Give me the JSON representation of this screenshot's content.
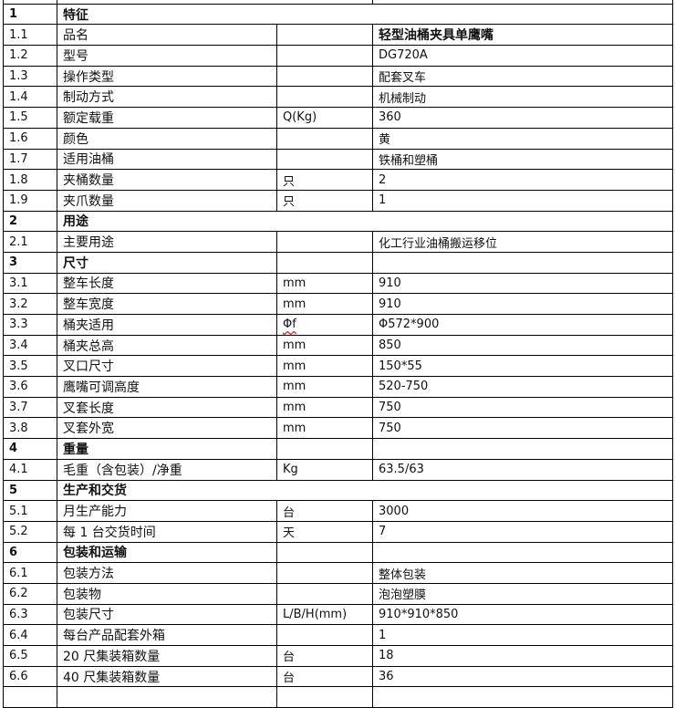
{
  "rows": [
    {
      "num": "1",
      "name": "特征",
      "unit": "",
      "value": "",
      "type": "section",
      "span": true
    },
    {
      "num": "1.1",
      "name": "品名",
      "unit": "",
      "value": "轻型油桶夹具单鹰嘴",
      "bold_value": true
    },
    {
      "num": "1.2",
      "name": "型号",
      "unit": "",
      "value": "DG720A"
    },
    {
      "num": "1.3",
      "name": "操作类型",
      "unit": "",
      "value": "配套叉车"
    },
    {
      "num": "1.4",
      "name": "制动方式",
      "unit": "",
      "value": "机械制动"
    },
    {
      "num": "1.5",
      "name": "额定载重",
      "unit": "Q(Kg)",
      "value": "360"
    },
    {
      "num": "1.6",
      "name": "颜色",
      "unit": "",
      "value": "黄"
    },
    {
      "num": "1.7",
      "name": "适用油桶",
      "unit": "",
      "value": "铁桶和塑桶"
    },
    {
      "num": "1.8",
      "name": "夹桶数量",
      "unit": "只",
      "value": "2"
    },
    {
      "num": "1.9",
      "name": "夹爪数量",
      "unit": "只",
      "value": "1"
    },
    {
      "num": "2",
      "name": "用途",
      "unit": "",
      "value": "",
      "type": "section",
      "span": true
    },
    {
      "num": "2.1",
      "name": "主要用途",
      "unit": "",
      "value": "化工行业油桶搬运移位"
    },
    {
      "num": "3",
      "name": "尺寸",
      "unit": "",
      "value": "",
      "type": "section"
    },
    {
      "num": "3.1",
      "name": "整车长度",
      "unit": "mm",
      "value": "910"
    },
    {
      "num": "3.2",
      "name": "整车宽度",
      "unit": "mm",
      "value": "910"
    },
    {
      "num": "3.3",
      "name": "桶夹适用",
      "unit": "Φf",
      "value": "Φ572*900",
      "spell": true
    },
    {
      "num": "3.4",
      "name": "桶夹总高",
      "unit": "mm",
      "value": "850"
    },
    {
      "num": "3.5",
      "name": "叉口尺寸",
      "unit": "mm",
      "value": "150*55"
    },
    {
      "num": "3.6",
      "name": "鹰嘴可调高度",
      "unit": "mm",
      "value": "520-750"
    },
    {
      "num": "3.7",
      "name": "叉套长度",
      "unit": "mm",
      "value": "750"
    },
    {
      "num": "3.8",
      "name": "叉套外宽",
      "unit": "mm",
      "value": "750"
    },
    {
      "num": "4",
      "name": "重量",
      "unit": "",
      "value": "",
      "type": "section"
    },
    {
      "num": "4.1",
      "name": "毛重（含包装）/净重",
      "unit": "Kg",
      "value": "63.5/63"
    },
    {
      "num": "5",
      "name": "生产和交货",
      "unit": "",
      "value": "",
      "type": "section",
      "span": true
    },
    {
      "num": "5.1",
      "name": "月生产能力",
      "unit": "台",
      "value": "3000"
    },
    {
      "num": "5.2",
      "name": "每 1 台交货时间",
      "unit": "天",
      "value": "7"
    },
    {
      "num": "6",
      "name": "包装和运输",
      "unit": "",
      "value": "",
      "type": "section"
    },
    {
      "num": "6.1",
      "name": "包装方法",
      "unit": "",
      "value": "整体包装"
    },
    {
      "num": "6.2",
      "name": "包装物",
      "unit": "",
      "value": "泡泡塑膜"
    },
    {
      "num": "6.3",
      "name": "包装尺寸",
      "unit": "L/B/H(mm)",
      "value": "910*910*850"
    },
    {
      "num": "6.4",
      "name": "每台产品配套外箱",
      "unit": "",
      "value": "1"
    },
    {
      "num": "6.5",
      "name": "20 尺集装箱数量",
      "unit": "台",
      "value": "18"
    },
    {
      "num": "6.6",
      "name": "40 尺集装箱数量",
      "unit": "台",
      "value": "36"
    }
  ]
}
